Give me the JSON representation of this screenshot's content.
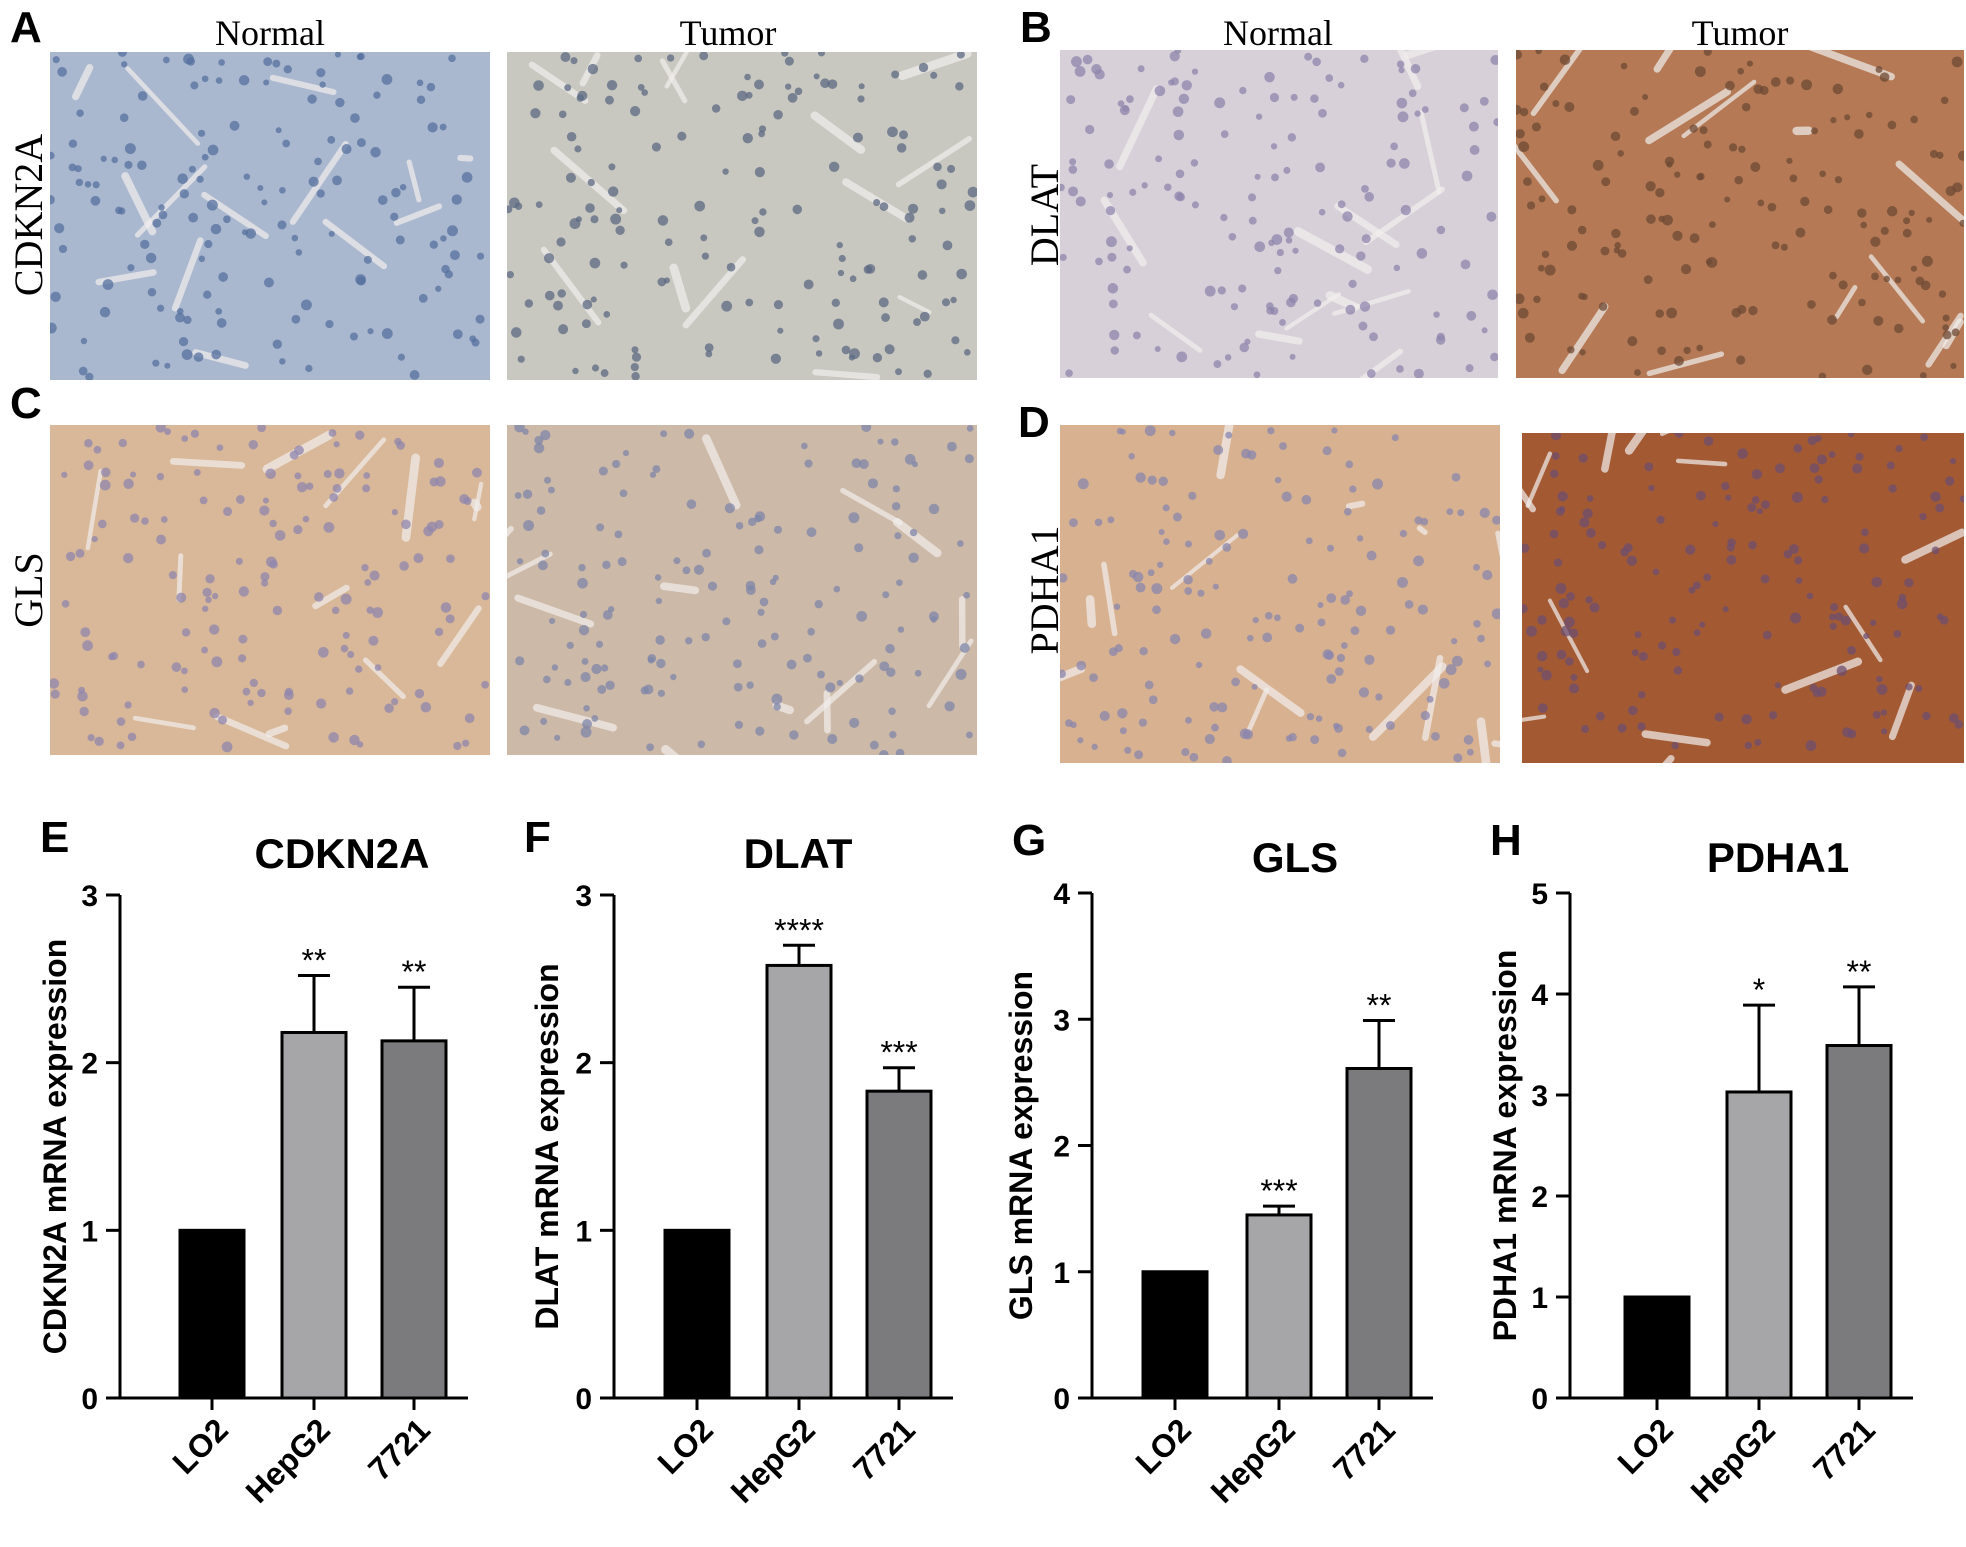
{
  "ihc_panels": [
    {
      "letter": "A",
      "gene": "CDKN2A",
      "columns": [
        "Normal",
        "Tumor"
      ],
      "tissue": [
        "#aab8cf",
        "#c9c8c0"
      ],
      "nuclei": [
        "#56709f",
        "#5b6a83"
      ]
    },
    {
      "letter": "B",
      "gene": "DLAT",
      "columns": [
        "Normal",
        "Tumor"
      ],
      "tissue": [
        "#d8d0d8",
        "#b57a55"
      ],
      "nuclei": [
        "#8f86ad",
        "#6e4a34"
      ]
    },
    {
      "letter": "C",
      "gene": "GLS",
      "columns": [],
      "tissue": [
        "#d8b898",
        "#cdb9a7"
      ],
      "nuclei": [
        "#8f86ad",
        "#7d86a8"
      ]
    },
    {
      "letter": "D",
      "gene": "PDHA1",
      "columns": [],
      "tissue": [
        "#d8b290",
        "#a35a33"
      ],
      "nuclei": [
        "#8a86ae",
        "#6d4f70"
      ]
    }
  ],
  "chart_data": [
    {
      "type": "bar",
      "letter": "E",
      "title": "CDKN2A",
      "ylabel": "CDKN2A mRNA expression",
      "xlabel": "",
      "categories": [
        "LO2",
        "HepG2",
        "7721"
      ],
      "values": [
        1.0,
        2.18,
        2.13
      ],
      "errors": [
        0,
        0.34,
        0.32
      ],
      "significance": [
        "",
        "**",
        "**"
      ],
      "ylim": [
        0,
        3
      ],
      "yticks": [
        "0",
        "1",
        "2",
        "3"
      ],
      "bar_colors": [
        "#000000",
        "#a6a6a8",
        "#7b7b7d"
      ],
      "grid": false,
      "legend": "none"
    },
    {
      "type": "bar",
      "letter": "F",
      "title": "DLAT",
      "ylabel": "DLAT mRNA expression",
      "xlabel": "",
      "categories": [
        "LO2",
        "HepG2",
        "7721"
      ],
      "values": [
        1.0,
        2.58,
        1.83
      ],
      "errors": [
        0,
        0.12,
        0.14
      ],
      "significance": [
        "",
        "****",
        "***"
      ],
      "ylim": [
        0,
        3
      ],
      "yticks": [
        "0",
        "1",
        "2",
        "3"
      ],
      "bar_colors": [
        "#000000",
        "#a6a6a8",
        "#7b7b7d"
      ],
      "grid": false,
      "legend": "none"
    },
    {
      "type": "bar",
      "letter": "G",
      "title": "GLS",
      "ylabel": "GLS mRNA expression",
      "xlabel": "",
      "categories": [
        "LO2",
        "HepG2",
        "7721"
      ],
      "values": [
        1.0,
        1.45,
        2.61
      ],
      "errors": [
        0,
        0.07,
        0.38
      ],
      "significance": [
        "",
        "***",
        "**"
      ],
      "ylim": [
        0,
        4
      ],
      "yticks": [
        "0",
        "1",
        "2",
        "3",
        "4"
      ],
      "bar_colors": [
        "#000000",
        "#a6a6a8",
        "#7b7b7d"
      ],
      "grid": false,
      "legend": "none"
    },
    {
      "type": "bar",
      "letter": "H",
      "title": "PDHA1",
      "ylabel": "PDHA1 mRNA expression",
      "xlabel": "",
      "categories": [
        "LO2",
        "HepG2",
        "7721"
      ],
      "values": [
        1.0,
        3.03,
        3.49
      ],
      "errors": [
        0,
        0.86,
        0.58
      ],
      "significance": [
        "",
        "*",
        "**"
      ],
      "ylim": [
        0,
        5
      ],
      "yticks": [
        "0",
        "1",
        "2",
        "3",
        "4",
        "5"
      ],
      "bar_colors": [
        "#000000",
        "#a6a6a8",
        "#7b7b7d"
      ],
      "grid": false,
      "legend": "none"
    }
  ]
}
